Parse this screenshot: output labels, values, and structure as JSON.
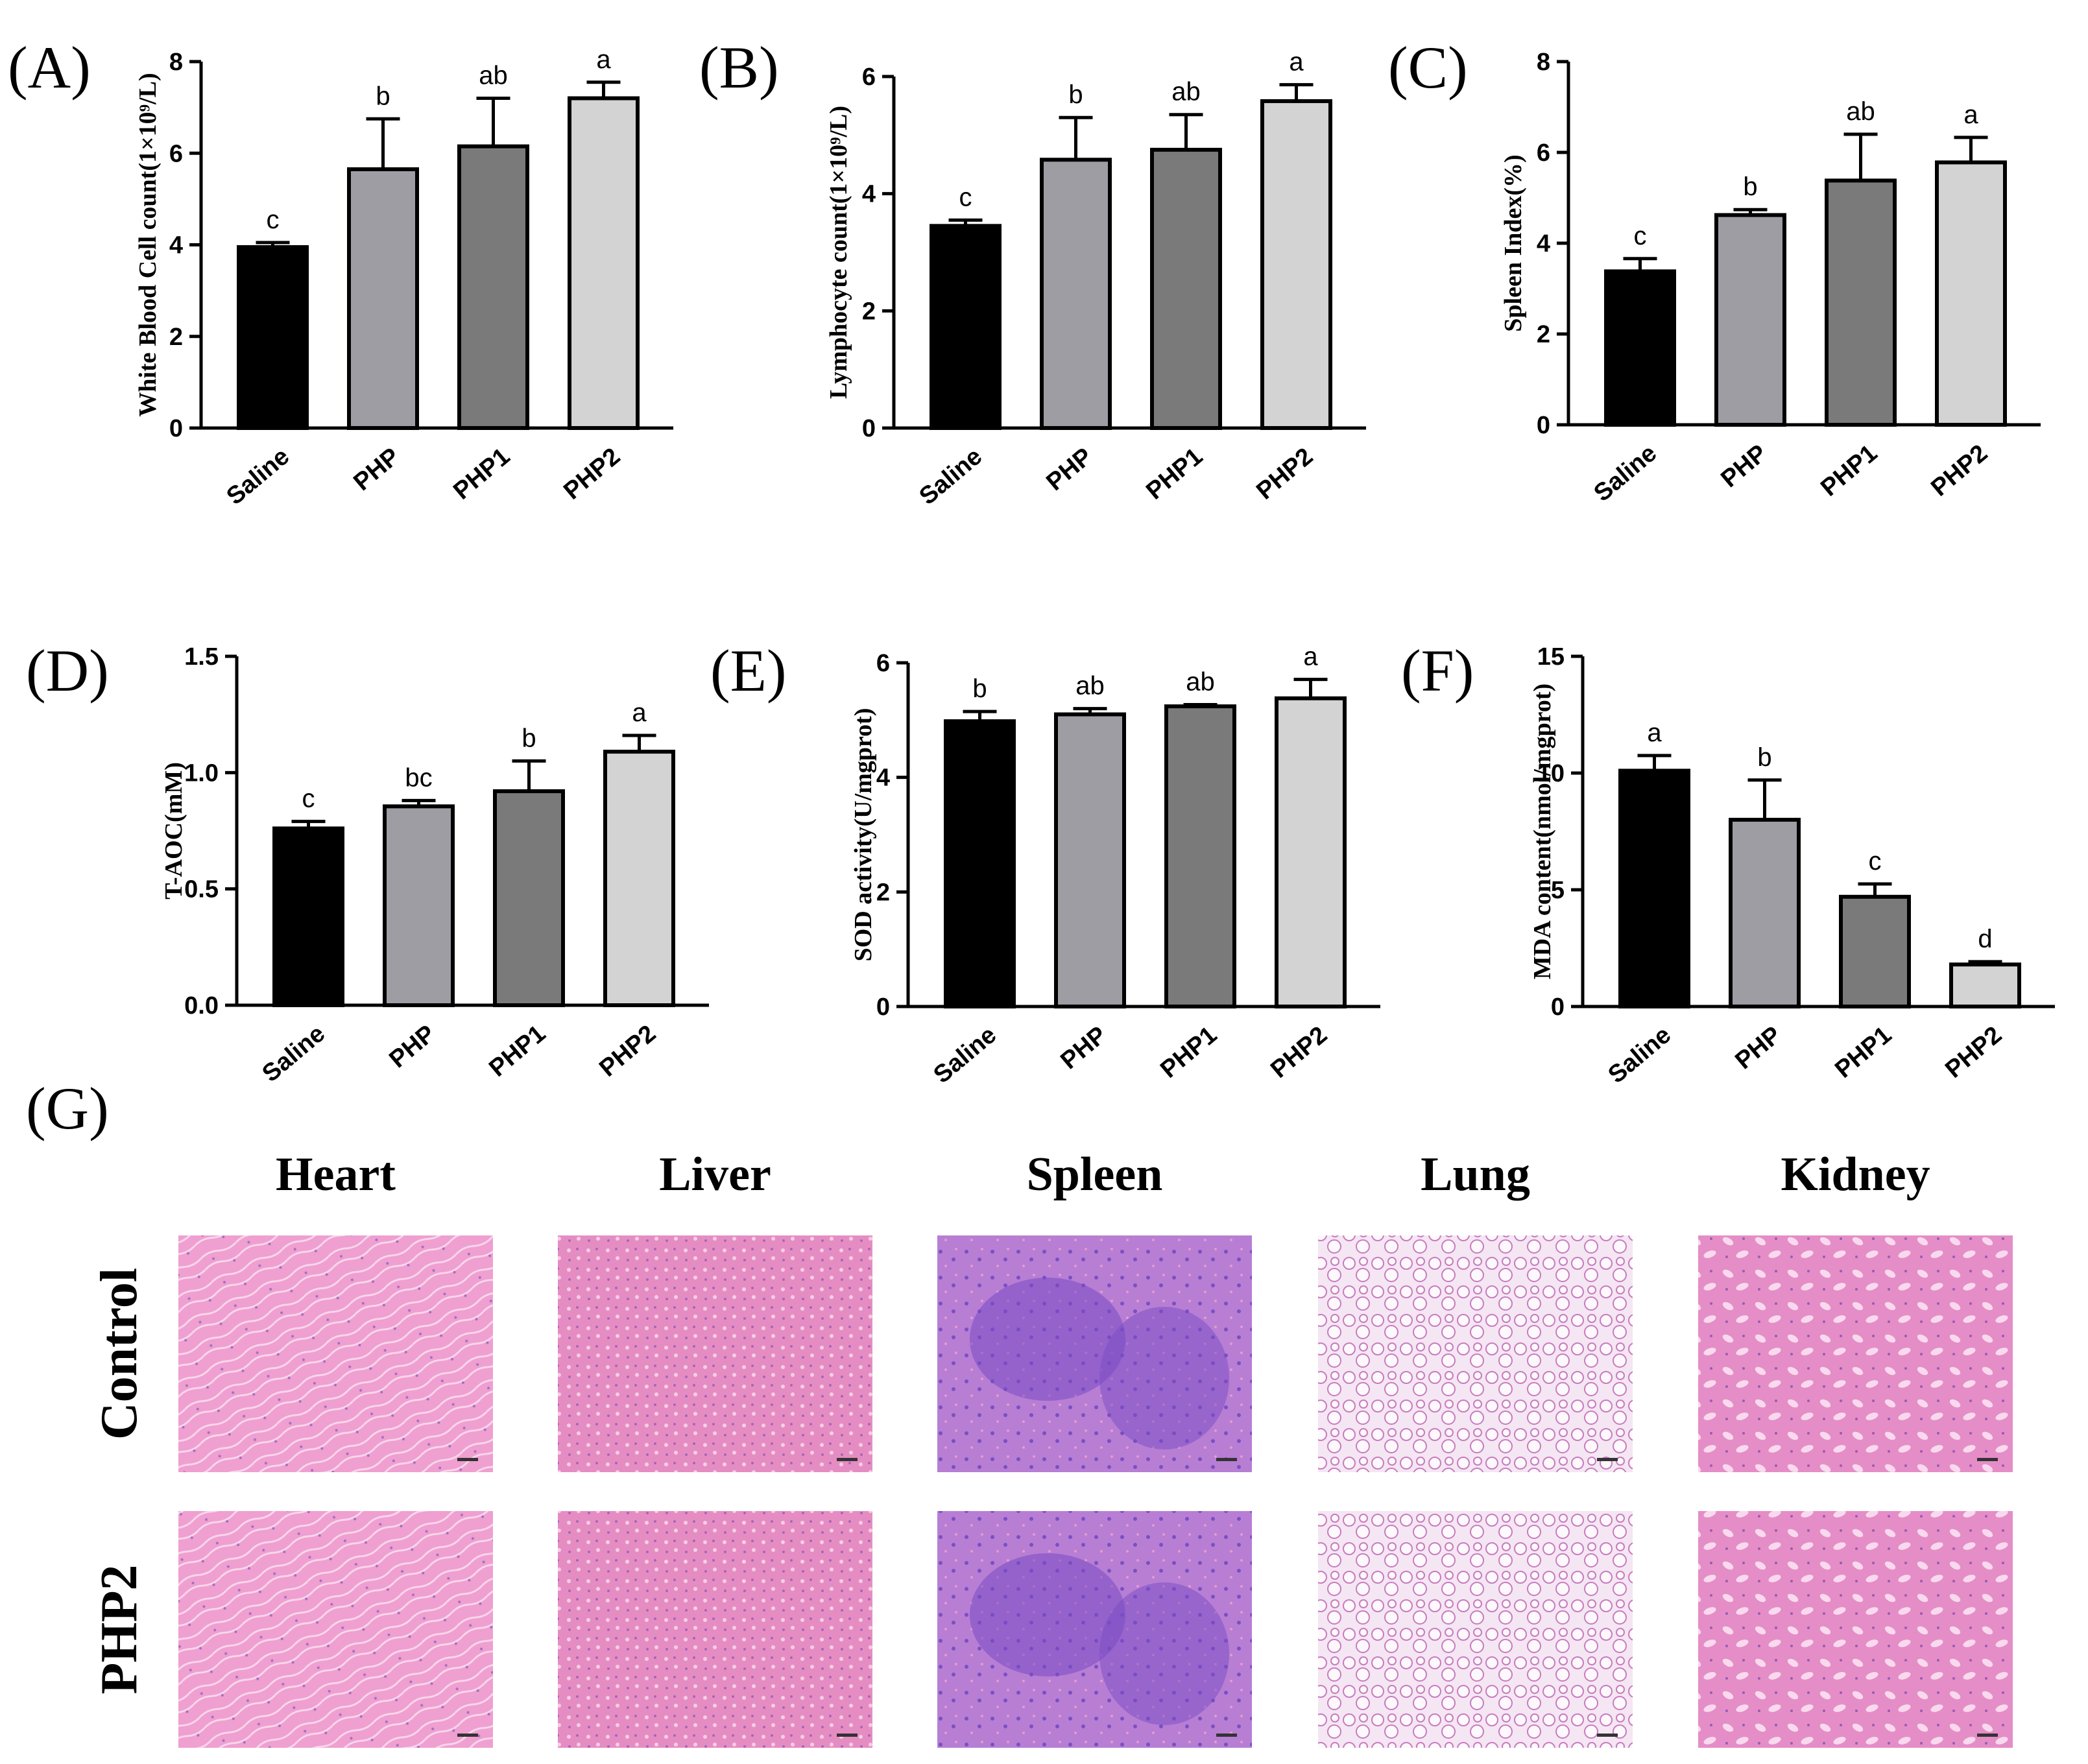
{
  "chart_data": [
    {
      "panel": "(A)",
      "type": "bar",
      "categories": [
        "Saline",
        "PHP",
        "PHP1",
        "PHP2"
      ],
      "values": [
        3.95,
        5.65,
        6.15,
        7.2
      ],
      "errors": [
        0.1,
        1.1,
        1.05,
        0.35
      ],
      "significance": [
        "c",
        "b",
        "ab",
        "a"
      ],
      "ylabel": "White Blood Cell count(1×10⁹/L)",
      "ylim": [
        0,
        8
      ],
      "yticks": [
        "0",
        "2",
        "4",
        "6",
        "8"
      ]
    },
    {
      "panel": "(B)",
      "type": "bar",
      "categories": [
        "Saline",
        "PHP",
        "PHP1",
        "PHP2"
      ],
      "values": [
        3.45,
        4.58,
        4.75,
        5.58
      ],
      "errors": [
        0.1,
        0.72,
        0.6,
        0.28
      ],
      "significance": [
        "c",
        "b",
        "ab",
        "a"
      ],
      "ylabel": "Lymphocyte count(1×10⁹/L)",
      "ylim": [
        0,
        6
      ],
      "yticks": [
        "0",
        "2",
        "4",
        "6"
      ]
    },
    {
      "panel": "(C)",
      "type": "bar",
      "categories": [
        "Saline",
        "PHP",
        "PHP1",
        "PHP2"
      ],
      "values": [
        3.38,
        4.62,
        5.38,
        5.78
      ],
      "errors": [
        0.28,
        0.12,
        1.02,
        0.55
      ],
      "significance": [
        "c",
        "b",
        "ab",
        "a"
      ],
      "ylabel": "Spleen Index(%)",
      "ylim": [
        0,
        8
      ],
      "yticks": [
        "0",
        "2",
        "4",
        "6",
        "8"
      ]
    },
    {
      "panel": "(D)",
      "type": "bar",
      "categories": [
        "Saline",
        "PHP",
        "PHP1",
        "PHP2"
      ],
      "values": [
        0.76,
        0.855,
        0.92,
        1.09
      ],
      "errors": [
        0.03,
        0.025,
        0.13,
        0.07
      ],
      "significance": [
        "c",
        "bc",
        "b",
        "a"
      ],
      "ylabel": "T-AOC(mM)",
      "ylim": [
        0,
        1.5
      ],
      "yticks": [
        "0.0",
        "0.5",
        "1.0",
        "1.5"
      ]
    },
    {
      "panel": "(E)",
      "type": "bar",
      "categories": [
        "Saline",
        "PHP",
        "PHP1",
        "PHP2"
      ],
      "values": [
        4.98,
        5.1,
        5.24,
        5.38
      ],
      "errors": [
        0.17,
        0.1,
        0.03,
        0.33
      ],
      "significance": [
        "b",
        "ab",
        "ab",
        "a"
      ],
      "ylabel": "SOD activity(U/mgprot)",
      "ylim": [
        0,
        6
      ],
      "yticks": [
        "0",
        "2",
        "4",
        "6"
      ]
    },
    {
      "panel": "(F)",
      "type": "bar",
      "categories": [
        "Saline",
        "PHP",
        "PHP1",
        "PHP2"
      ],
      "values": [
        10.1,
        8.0,
        4.7,
        1.8
      ],
      "errors": [
        0.65,
        1.7,
        0.55,
        0.12
      ],
      "significance": [
        "a",
        "b",
        "c",
        "d"
      ],
      "ylabel": "MDA content(nmol/mgprot)",
      "ylim": [
        0,
        15
      ],
      "yticks": [
        "0",
        "5",
        "10",
        "15"
      ]
    }
  ],
  "bar_colors": [
    "#000000",
    "#9d9da3",
    "#7a7a7a",
    "#d3d3d3"
  ],
  "histology": {
    "panel": "(G)",
    "columns": [
      "Heart",
      "Liver",
      "Spleen",
      "Lung",
      "Kidney"
    ],
    "rows": [
      "Control",
      "PHP2"
    ]
  }
}
